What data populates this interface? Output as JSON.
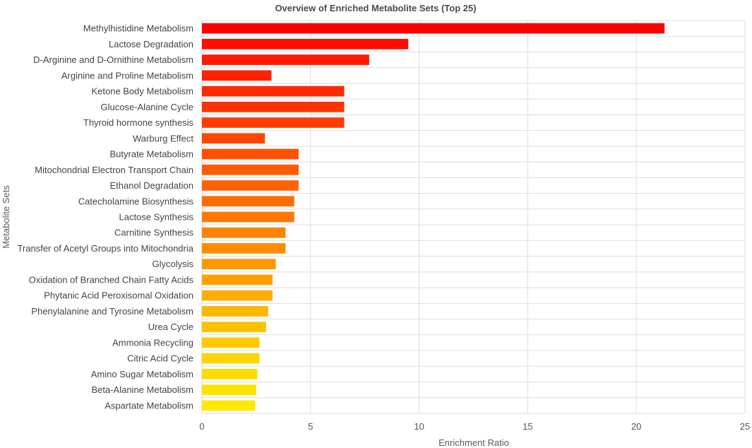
{
  "chart_data": {
    "type": "bar",
    "orientation": "horizontal",
    "title": "Overview of Enriched Metabolite Sets (Top 25)",
    "xlabel": "Enrichment Ratio",
    "ylabel": "Metabolite Sets",
    "xlim": [
      0,
      25
    ],
    "xticks": [
      0,
      5,
      10,
      15,
      20,
      25
    ],
    "grid": true,
    "categories": [
      "Methylhistidine Metabolism",
      "Lactose Degradation",
      "D-Arginine and D-Ornithine Metabolism",
      "Arginine and Proline Metabolism",
      "Ketone Body Metabolism",
      "Glucose-Alanine Cycle",
      "Thyroid hormone synthesis",
      "Warburg Effect",
      "Butyrate Metabolism",
      "Mitochondrial Electron Transport Chain",
      "Ethanol Degradation",
      "Catecholamine Biosynthesis",
      "Lactose Synthesis",
      "Carnitine Synthesis",
      "Transfer of Acetyl Groups into Mitochondria",
      "Glycolysis",
      "Oxidation of Branched Chain Fatty Acids",
      "Phytanic Acid Peroxisomal Oxidation",
      "Phenylalanine and Tyrosine Metabolism",
      "Urea Cycle",
      "Ammonia Recycling",
      "Citric Acid Cycle",
      "Amino Sugar Metabolism",
      "Beta-Alanine Metabolism",
      "Aspartate Metabolism"
    ],
    "values": [
      21.3,
      9.5,
      7.7,
      3.2,
      6.55,
      6.55,
      6.55,
      2.9,
      4.45,
      4.45,
      4.45,
      4.25,
      4.25,
      3.85,
      3.85,
      3.4,
      3.25,
      3.25,
      3.05,
      2.95,
      2.65,
      2.65,
      2.55,
      2.5,
      2.45
    ],
    "colors": [
      "#ff0000",
      "#ff0d00",
      "#ff1a00",
      "#ff2200",
      "#ff2a00",
      "#ff3300",
      "#ff3c00",
      "#ff4500",
      "#ff5000",
      "#ff5a00",
      "#ff6300",
      "#ff6d00",
      "#ff7700",
      "#ff8200",
      "#ff8c00",
      "#ff9700",
      "#ffa200",
      "#ffad00",
      "#ffb700",
      "#ffc100",
      "#ffcb00",
      "#ffd400",
      "#ffdc00",
      "#ffe300",
      "#ffe800"
    ]
  }
}
